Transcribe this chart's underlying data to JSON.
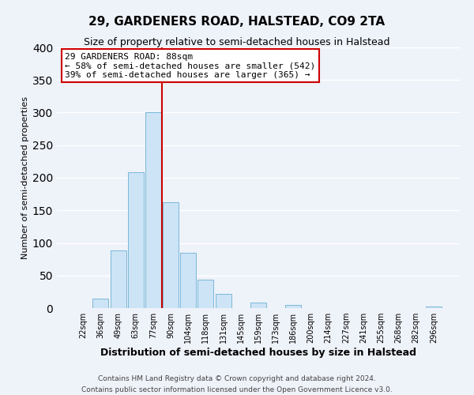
{
  "title": "29, GARDENERS ROAD, HALSTEAD, CO9 2TA",
  "subtitle": "Size of property relative to semi-detached houses in Halstead",
  "xlabel": "Distribution of semi-detached houses by size in Halstead",
  "ylabel": "Number of semi-detached properties",
  "bar_labels": [
    "22sqm",
    "36sqm",
    "49sqm",
    "63sqm",
    "77sqm",
    "90sqm",
    "104sqm",
    "118sqm",
    "131sqm",
    "145sqm",
    "159sqm",
    "173sqm",
    "186sqm",
    "200sqm",
    "214sqm",
    "227sqm",
    "241sqm",
    "255sqm",
    "268sqm",
    "282sqm",
    "296sqm"
  ],
  "bar_values": [
    0,
    15,
    88,
    208,
    300,
    163,
    85,
    44,
    22,
    0,
    8,
    0,
    5,
    0,
    0,
    0,
    0,
    0,
    0,
    0,
    3
  ],
  "bar_color": "#cce4f5",
  "bar_edge_color": "#7ab8d9",
  "vline_x_idx": 4,
  "vline_color": "#cc0000",
  "annotation_title": "29 GARDENERS ROAD: 88sqm",
  "annotation_line1": "← 58% of semi-detached houses are smaller (542)",
  "annotation_line2": "39% of semi-detached houses are larger (365) →",
  "annotation_box_color": "white",
  "annotation_box_edge": "#cc0000",
  "ylim": [
    0,
    400
  ],
  "yticks": [
    0,
    50,
    100,
    150,
    200,
    250,
    300,
    350,
    400
  ],
  "footer_line1": "Contains HM Land Registry data © Crown copyright and database right 2024.",
  "footer_line2": "Contains public sector information licensed under the Open Government Licence v3.0.",
  "background_color": "#eef2f9",
  "grid_color": "white",
  "title_fontsize": 11,
  "subtitle_fontsize": 9,
  "xlabel_fontsize": 9,
  "ylabel_fontsize": 8,
  "tick_fontsize": 7,
  "footer_fontsize": 6.5,
  "annotation_fontsize": 8
}
